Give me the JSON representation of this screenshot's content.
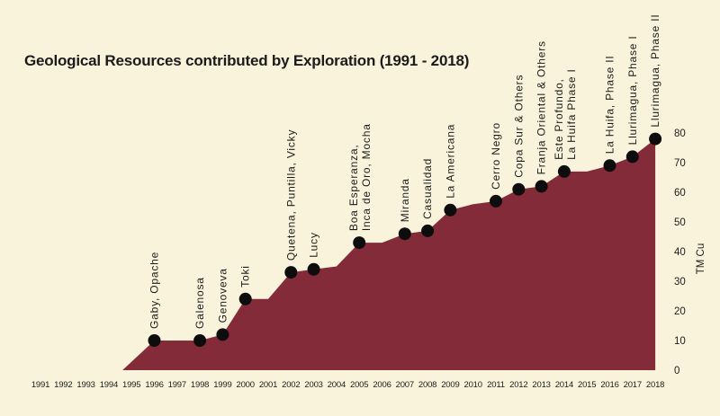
{
  "title": "Geological Resources contributed by Exploration (1991 - 2018)",
  "colors": {
    "background": "#FAF3DB",
    "area": "#842B3A",
    "dot": "#0D0D0D",
    "text": "#1B1B1B"
  },
  "chart_data": {
    "type": "area",
    "title": "Geological Resources contributed by Exploration (1991 - 2018)",
    "xlabel": "",
    "ylabel": "TM Cu",
    "ylim": [
      0,
      80
    ],
    "yticks": [
      0,
      10,
      20,
      30,
      40,
      50,
      60,
      70,
      80
    ],
    "ytick_side": "right",
    "grid": false,
    "x_axis_years": [
      1991,
      1992,
      1993,
      1994,
      1995,
      1996,
      1997,
      1998,
      1999,
      2000,
      2001,
      2002,
      2003,
      2004,
      2005,
      2006,
      2007,
      2008,
      2009,
      2010,
      2011,
      2012,
      2013,
      2014,
      2015,
      2016,
      2017,
      2018
    ],
    "area_origin_year": 1994.6,
    "series": [
      {
        "year": 1996,
        "value": 10
      },
      {
        "year": 1997,
        "value": 10
      },
      {
        "year": 1998,
        "value": 10
      },
      {
        "year": 1999,
        "value": 12
      },
      {
        "year": 2000,
        "value": 24
      },
      {
        "year": 2001,
        "value": 24
      },
      {
        "year": 2002,
        "value": 33
      },
      {
        "year": 2003,
        "value": 34
      },
      {
        "year": 2004,
        "value": 35
      },
      {
        "year": 2005,
        "value": 43
      },
      {
        "year": 2006,
        "value": 43
      },
      {
        "year": 2007,
        "value": 46
      },
      {
        "year": 2008,
        "value": 47
      },
      {
        "year": 2009,
        "value": 54
      },
      {
        "year": 2010,
        "value": 56
      },
      {
        "year": 2011,
        "value": 57
      },
      {
        "year": 2012,
        "value": 61
      },
      {
        "year": 2013,
        "value": 62
      },
      {
        "year": 2014,
        "value": 67
      },
      {
        "year": 2015,
        "value": 67
      },
      {
        "year": 2016,
        "value": 69
      },
      {
        "year": 2017,
        "value": 72
      },
      {
        "year": 2018,
        "value": 78
      }
    ],
    "points": [
      {
        "year": 1996,
        "value": 10,
        "label": [
          "Gaby, Opache"
        ]
      },
      {
        "year": 1998,
        "value": 10,
        "label": [
          "Galenosa"
        ]
      },
      {
        "year": 1999,
        "value": 12,
        "label": [
          "Genoveva"
        ]
      },
      {
        "year": 2000,
        "value": 24,
        "label": [
          "Toki"
        ]
      },
      {
        "year": 2002,
        "value": 33,
        "label": [
          "Quetena, Puntilla, Vicky"
        ]
      },
      {
        "year": 2003,
        "value": 34,
        "label": [
          "Lucy"
        ]
      },
      {
        "year": 2005,
        "value": 43,
        "label": [
          "Boa Esperanza,",
          "Inca de Oro, Mocha"
        ]
      },
      {
        "year": 2007,
        "value": 46,
        "label": [
          "Miranda"
        ]
      },
      {
        "year": 2008,
        "value": 47,
        "label": [
          "Casualidad"
        ]
      },
      {
        "year": 2009,
        "value": 54,
        "label": [
          "La Americana"
        ]
      },
      {
        "year": 2011,
        "value": 57,
        "label": [
          "Cerro Negro"
        ]
      },
      {
        "year": 2012,
        "value": 61,
        "label": [
          "Copa Sur & Others"
        ]
      },
      {
        "year": 2013,
        "value": 62,
        "label": [
          "Franja Oriental & Others"
        ]
      },
      {
        "year": 2014,
        "value": 67,
        "label": [
          "Este Profundo,",
          "La Huifa Phase I"
        ]
      },
      {
        "year": 2016,
        "value": 69,
        "label": [
          "La Huifa, Phase II"
        ]
      },
      {
        "year": 2017,
        "value": 72,
        "label": [
          "Llurimagua, Phase I"
        ]
      },
      {
        "year": 2018,
        "value": 78,
        "label": [
          "Llurimagua, Phase II"
        ]
      }
    ]
  }
}
